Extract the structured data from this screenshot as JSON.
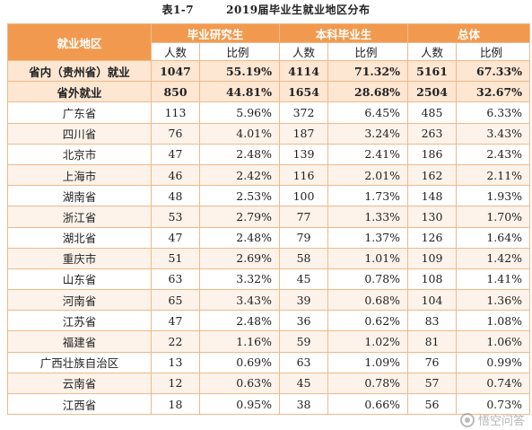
{
  "title": {
    "number": "表1-7",
    "text": "2019届毕业生就业地区分布"
  },
  "header": {
    "region": "就业地区",
    "groups": [
      "毕业研究生",
      "本科毕业生",
      "总体"
    ],
    "count_label": "人数",
    "ratio_label": "比例"
  },
  "rows": [
    {
      "region": "省内（贵州省）就业",
      "g_count": "1047",
      "g_pct": "55.19%",
      "u_count": "4114",
      "u_pct": "71.32%",
      "t_count": "5161",
      "t_pct": "67.33%"
    },
    {
      "region": "省外就业",
      "g_count": "850",
      "g_pct": "44.81%",
      "u_count": "1654",
      "u_pct": "28.68%",
      "t_count": "2504",
      "t_pct": "32.67%"
    },
    {
      "region": "广东省",
      "g_count": "113",
      "g_pct": "5.96%",
      "u_count": "372",
      "u_pct": "6.45%",
      "t_count": "485",
      "t_pct": "6.33%"
    },
    {
      "region": "四川省",
      "g_count": "76",
      "g_pct": "4.01%",
      "u_count": "187",
      "u_pct": "3.24%",
      "t_count": "263",
      "t_pct": "3.43%"
    },
    {
      "region": "北京市",
      "g_count": "47",
      "g_pct": "2.48%",
      "u_count": "139",
      "u_pct": "2.41%",
      "t_count": "186",
      "t_pct": "2.43%"
    },
    {
      "region": "上海市",
      "g_count": "46",
      "g_pct": "2.42%",
      "u_count": "116",
      "u_pct": "2.01%",
      "t_count": "162",
      "t_pct": "2.11%"
    },
    {
      "region": "湖南省",
      "g_count": "48",
      "g_pct": "2.53%",
      "u_count": "100",
      "u_pct": "1.73%",
      "t_count": "148",
      "t_pct": "1.93%"
    },
    {
      "region": "浙江省",
      "g_count": "53",
      "g_pct": "2.79%",
      "u_count": "77",
      "u_pct": "1.33%",
      "t_count": "130",
      "t_pct": "1.70%"
    },
    {
      "region": "湖北省",
      "g_count": "47",
      "g_pct": "2.48%",
      "u_count": "79",
      "u_pct": "1.37%",
      "t_count": "126",
      "t_pct": "1.64%"
    },
    {
      "region": "重庆市",
      "g_count": "51",
      "g_pct": "2.69%",
      "u_count": "58",
      "u_pct": "1.01%",
      "t_count": "109",
      "t_pct": "1.42%"
    },
    {
      "region": "山东省",
      "g_count": "63",
      "g_pct": "3.32%",
      "u_count": "45",
      "u_pct": "0.78%",
      "t_count": "108",
      "t_pct": "1.41%"
    },
    {
      "region": "河南省",
      "g_count": "65",
      "g_pct": "3.43%",
      "u_count": "39",
      "u_pct": "0.68%",
      "t_count": "104",
      "t_pct": "1.36%"
    },
    {
      "region": "江苏省",
      "g_count": "47",
      "g_pct": "2.48%",
      "u_count": "36",
      "u_pct": "0.62%",
      "t_count": "83",
      "t_pct": "1.08%"
    },
    {
      "region": "福建省",
      "g_count": "22",
      "g_pct": "1.16%",
      "u_count": "59",
      "u_pct": "1.02%",
      "t_count": "81",
      "t_pct": "1.06%"
    },
    {
      "region": "广西壮族自治区",
      "g_count": "13",
      "g_pct": "0.69%",
      "u_count": "63",
      "u_pct": "1.09%",
      "t_count": "76",
      "t_pct": "0.99%"
    },
    {
      "region": "云南省",
      "g_count": "12",
      "g_pct": "0.63%",
      "u_count": "45",
      "u_pct": "0.78%",
      "t_count": "57",
      "t_pct": "0.74%"
    },
    {
      "region": "江西省",
      "g_count": "18",
      "g_pct": "0.95%",
      "u_count": "38",
      "u_pct": "0.66%",
      "t_count": "56",
      "t_pct": "0.73%"
    }
  ],
  "watermark": "悟空问答"
}
